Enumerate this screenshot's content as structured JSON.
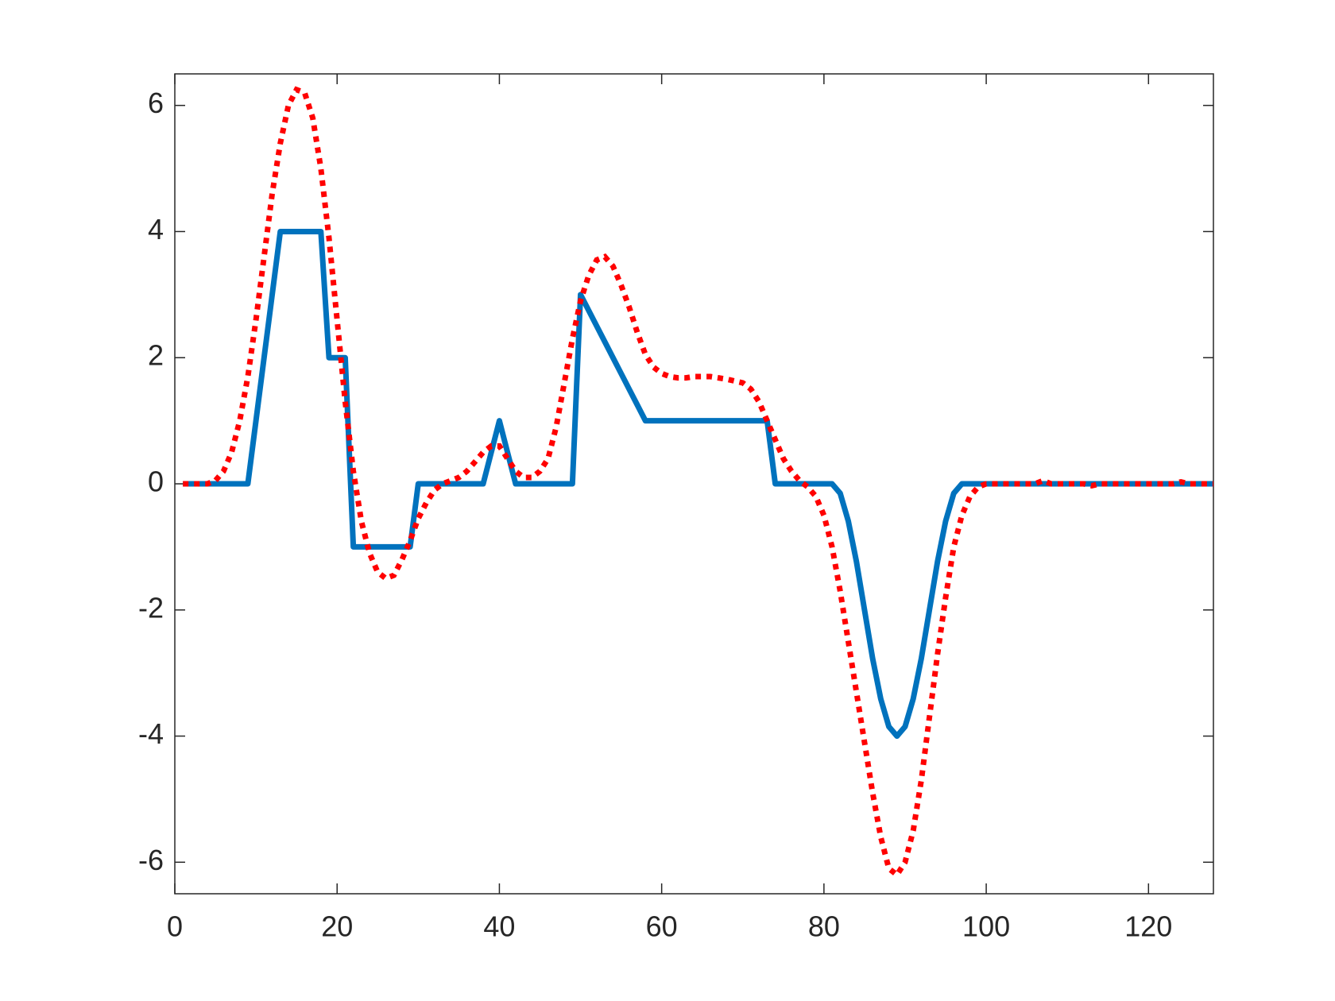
{
  "chart_data": {
    "type": "line",
    "x": [
      1,
      2,
      3,
      4,
      5,
      6,
      7,
      8,
      9,
      10,
      11,
      12,
      13,
      14,
      15,
      16,
      17,
      18,
      19,
      20,
      21,
      22,
      23,
      24,
      25,
      26,
      27,
      28,
      29,
      30,
      31,
      32,
      33,
      34,
      35,
      36,
      37,
      38,
      39,
      40,
      41,
      42,
      43,
      44,
      45,
      46,
      47,
      48,
      49,
      50,
      51,
      52,
      53,
      54,
      55,
      56,
      57,
      58,
      59,
      60,
      61,
      62,
      63,
      64,
      65,
      66,
      67,
      68,
      69,
      70,
      71,
      72,
      73,
      74,
      75,
      76,
      77,
      78,
      79,
      80,
      81,
      82,
      83,
      84,
      85,
      86,
      87,
      88,
      89,
      90,
      91,
      92,
      93,
      94,
      95,
      96,
      97,
      98,
      99,
      100,
      101,
      102,
      103,
      104,
      105,
      106,
      107,
      108,
      109,
      110,
      111,
      112,
      113,
      114,
      115,
      116,
      117,
      118,
      119,
      120,
      121,
      122,
      123,
      124,
      125,
      126,
      127,
      128
    ],
    "series": [
      {
        "color": "#0072bd",
        "style": "solid",
        "values": [
          0,
          0,
          0,
          0,
          0,
          0,
          0,
          0,
          0,
          1,
          2,
          3,
          4,
          4,
          4,
          4,
          4,
          4,
          2,
          2,
          2,
          -1,
          -1,
          -1,
          -1,
          -1,
          -1,
          -1,
          -1,
          0,
          0,
          0,
          0,
          0,
          0,
          0,
          0,
          0,
          0.5,
          1,
          0.5,
          0,
          0,
          0,
          0,
          0,
          0,
          0,
          0,
          3,
          2.75,
          2.5,
          2.25,
          2,
          1.75,
          1.5,
          1.25,
          1,
          1,
          1,
          1,
          1,
          1,
          1,
          1,
          1,
          1,
          1,
          1,
          1,
          1,
          1,
          1,
          0,
          0,
          0,
          0,
          0,
          0,
          0,
          0,
          -0.15,
          -0.59,
          -1.23,
          -2,
          -2.77,
          -3.41,
          -3.85,
          -4,
          -3.85,
          -3.41,
          -2.77,
          -2,
          -1.23,
          -0.59,
          -0.15,
          0,
          0,
          0,
          0,
          0,
          0,
          0,
          0,
          0,
          0,
          0,
          0,
          0,
          0,
          0,
          0,
          0,
          0,
          0,
          0,
          0,
          0,
          0,
          0,
          0,
          0,
          0,
          0,
          0,
          0,
          0,
          0
        ]
      },
      {
        "color": "#ff0000",
        "style": "dotted",
        "values": [
          0,
          0,
          0,
          0,
          0.05,
          0.2,
          0.5,
          1.0,
          1.7,
          2.6,
          3.6,
          4.6,
          5.4,
          6.0,
          6.25,
          6.2,
          5.8,
          5.0,
          3.9,
          2.6,
          1.3,
          0.2,
          -0.6,
          -1.1,
          -1.4,
          -1.5,
          -1.45,
          -1.2,
          -0.9,
          -0.55,
          -0.3,
          -0.1,
          0,
          0.05,
          0.1,
          0.2,
          0.35,
          0.5,
          0.6,
          0.6,
          0.4,
          0.2,
          0.1,
          0.1,
          0.2,
          0.4,
          0.9,
          1.6,
          2.3,
          2.9,
          3.3,
          3.55,
          3.6,
          3.45,
          3.15,
          2.8,
          2.4,
          2.05,
          1.85,
          1.75,
          1.7,
          1.68,
          1.68,
          1.7,
          1.7,
          1.7,
          1.68,
          1.66,
          1.63,
          1.6,
          1.5,
          1.3,
          1.0,
          0.7,
          0.4,
          0.2,
          0.05,
          -0.05,
          -0.2,
          -0.5,
          -1.0,
          -1.7,
          -2.5,
          -3.3,
          -4.1,
          -4.9,
          -5.6,
          -6.1,
          -6.2,
          -6.0,
          -5.5,
          -4.7,
          -3.7,
          -2.7,
          -1.8,
          -1.0,
          -0.5,
          -0.2,
          -0.05,
          0,
          0,
          0,
          0,
          0,
          0,
          0,
          0.05,
          0,
          0,
          0,
          0,
          0,
          -0.03,
          0,
          0,
          0,
          0,
          0,
          0,
          0,
          0,
          0,
          0,
          0.03,
          0,
          0,
          0,
          0
        ]
      }
    ],
    "xlim": [
      0,
      128
    ],
    "ylim": [
      -6.5,
      6.5
    ],
    "xticks": [
      0,
      20,
      40,
      60,
      80,
      100,
      120
    ],
    "yticks": [
      -6,
      -4,
      -2,
      0,
      2,
      4,
      6
    ]
  }
}
